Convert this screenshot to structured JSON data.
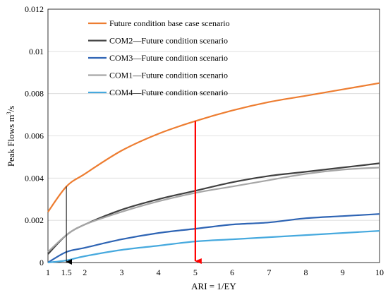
{
  "chart_data": {
    "type": "line",
    "xlabel": "ARI = 1/EY",
    "ylabel_text": "Peak Flows m",
    "ylabel_sup": "3",
    "ylabel_suffix": "/s",
    "xlim": [
      1,
      10
    ],
    "ylim": [
      0,
      0.012
    ],
    "xticks": [
      1,
      2,
      3,
      4,
      5,
      6,
      7,
      8,
      9,
      10
    ],
    "xtick_labels": [
      "1",
      "2",
      "3",
      "4",
      "5",
      "6",
      "7",
      "8",
      "9",
      "10"
    ],
    "yticks": [
      0,
      0.002,
      0.004,
      0.006,
      0.008,
      0.01,
      0.012
    ],
    "ytick_labels": [
      "0",
      "0.002",
      "0.004",
      "0.006",
      "0.008",
      "0.01",
      "0.012"
    ],
    "grid": "horizontal",
    "legend_position": "top-left",
    "x": [
      1,
      1.5,
      2,
      3,
      4,
      5,
      6,
      7,
      8,
      9,
      10
    ],
    "series": [
      {
        "name": "Future condition base case scenario",
        "color": "#ED7D31",
        "values": [
          0.0024,
          0.0036,
          0.0042,
          0.0053,
          0.0061,
          0.0067,
          0.0072,
          0.0076,
          0.0079,
          0.0082,
          0.0085
        ]
      },
      {
        "name": "COM2—Future condition scenario",
        "color": "#404040",
        "values": [
          0.0004,
          0.0013,
          0.0018,
          0.0025,
          0.003,
          0.0034,
          0.0038,
          0.0041,
          0.0043,
          0.0045,
          0.0047
        ]
      },
      {
        "name": "COM3—Future condition scenario",
        "color": "#2E64B4",
        "values": [
          0.0,
          0.0005,
          0.0007,
          0.0011,
          0.0014,
          0.0016,
          0.0018,
          0.0019,
          0.0021,
          0.0022,
          0.0023
        ]
      },
      {
        "name": "COM1—Future condition scenario",
        "color": "#A6A6A6",
        "values": [
          0.0005,
          0.0013,
          0.0018,
          0.0024,
          0.0029,
          0.0033,
          0.0036,
          0.0039,
          0.0042,
          0.0044,
          0.0045
        ]
      },
      {
        "name": "COM4—Future condition scenario",
        "color": "#46A9DE",
        "values": [
          0.0,
          0.0001,
          0.0003,
          0.0006,
          0.0008,
          0.001,
          0.0011,
          0.0012,
          0.0013,
          0.0014,
          0.0015
        ]
      }
    ],
    "annotations": [
      {
        "type": "arrow",
        "x": 5,
        "y_from": 0.0067,
        "y_to": 0,
        "color": "#FF0000"
      },
      {
        "type": "arrow",
        "x": 1.5,
        "y_from": 0.0036,
        "y_to": 0,
        "color": "#000000",
        "label": "1.5"
      }
    ]
  }
}
